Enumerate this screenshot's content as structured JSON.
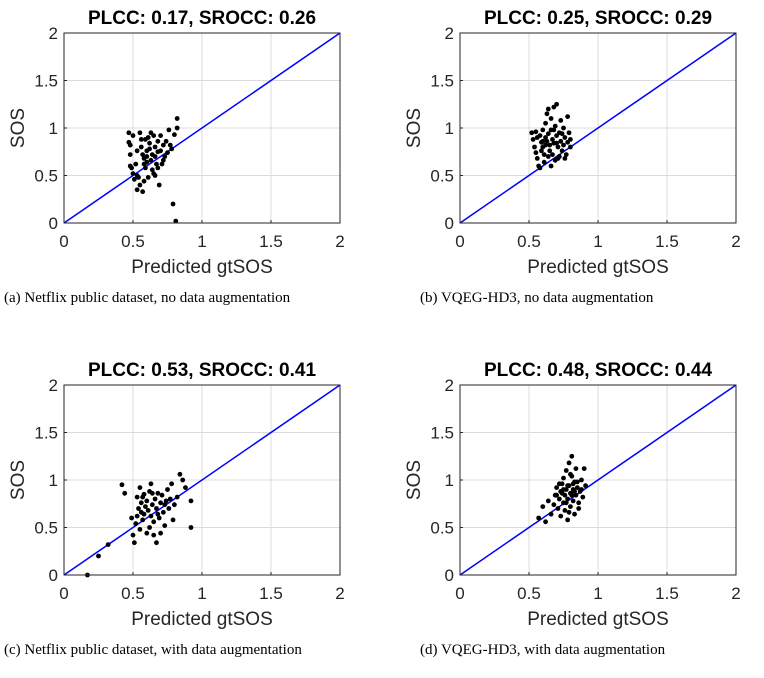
{
  "chart_data": [
    {
      "type": "scatter",
      "title": "PLCC: 0.17, SROCC: 0.26",
      "xlabel": "Predicted gtSOS",
      "ylabel": "SOS",
      "xlim": [
        0,
        2
      ],
      "ylim": [
        0,
        2
      ],
      "xticks": [
        "0",
        "0.5",
        "1",
        "1.5",
        "2"
      ],
      "yticks": [
        "0",
        "0.5",
        "1",
        "1.5",
        "2"
      ],
      "grid": true,
      "reference_line": {
        "x": [
          0,
          2
        ],
        "y": [
          0,
          2
        ],
        "color": "#0000ff"
      },
      "marker_color": "#000000",
      "caption": "(a) Netflix public dataset, no data augmentation",
      "points": [
        [
          0.47,
          0.95
        ],
        [
          0.47,
          0.85
        ],
        [
          0.48,
          0.82
        ],
        [
          0.48,
          0.72
        ],
        [
          0.48,
          0.6
        ],
        [
          0.49,
          0.58
        ],
        [
          0.5,
          0.52
        ],
        [
          0.51,
          0.46
        ],
        [
          0.52,
          0.62
        ],
        [
          0.53,
          0.5
        ],
        [
          0.54,
          0.48
        ],
        [
          0.55,
          0.4
        ],
        [
          0.55,
          0.95
        ],
        [
          0.56,
          0.88
        ],
        [
          0.56,
          0.8
        ],
        [
          0.57,
          0.72
        ],
        [
          0.58,
          0.68
        ],
        [
          0.58,
          0.62
        ],
        [
          0.59,
          0.58
        ],
        [
          0.6,
          0.76
        ],
        [
          0.6,
          0.7
        ],
        [
          0.61,
          0.9
        ],
        [
          0.62,
          0.84
        ],
        [
          0.62,
          0.78
        ],
        [
          0.63,
          0.66
        ],
        [
          0.64,
          0.72
        ],
        [
          0.64,
          0.56
        ],
        [
          0.65,
          0.92
        ],
        [
          0.66,
          0.8
        ],
        [
          0.66,
          0.7
        ],
        [
          0.67,
          0.62
        ],
        [
          0.68,
          0.75
        ],
        [
          0.68,
          0.86
        ],
        [
          0.69,
          0.4
        ],
        [
          0.7,
          0.76
        ],
        [
          0.71,
          0.62
        ],
        [
          0.72,
          0.82
        ],
        [
          0.73,
          0.7
        ],
        [
          0.74,
          0.86
        ],
        [
          0.75,
          0.74
        ],
        [
          0.76,
          0.98
        ],
        [
          0.78,
          0.78
        ],
        [
          0.79,
          0.2
        ],
        [
          0.8,
          0.93
        ],
        [
          0.81,
          0.02
        ],
        [
          0.82,
          1.1
        ],
        [
          0.82,
          1.0
        ],
        [
          0.53,
          0.35
        ],
        [
          0.57,
          0.33
        ],
        [
          0.61,
          0.48
        ],
        [
          0.66,
          0.5
        ],
        [
          0.7,
          0.92
        ],
        [
          0.63,
          0.95
        ],
        [
          0.59,
          0.88
        ],
        [
          0.53,
          0.76
        ],
        [
          0.77,
          0.82
        ],
        [
          0.68,
          0.58
        ],
        [
          0.5,
          0.92
        ],
        [
          0.58,
          0.44
        ],
        [
          0.65,
          0.52
        ],
        [
          0.72,
          0.66
        ],
        [
          0.6,
          0.64
        ]
      ]
    },
    {
      "type": "scatter",
      "title": "PLCC: 0.25, SROCC: 0.29",
      "xlabel": "Predicted gtSOS",
      "ylabel": "SOS",
      "xlim": [
        0,
        2
      ],
      "ylim": [
        0,
        2
      ],
      "xticks": [
        "0",
        "0.5",
        "1",
        "1.5",
        "2"
      ],
      "yticks": [
        "0",
        "0.5",
        "1",
        "1.5",
        "2"
      ],
      "grid": true,
      "reference_line": {
        "x": [
          0,
          2
        ],
        "y": [
          0,
          2
        ],
        "color": "#0000ff"
      },
      "marker_color": "#000000",
      "caption": "(b) VQEG-HD3, no data augmentation",
      "points": [
        [
          0.52,
          0.95
        ],
        [
          0.53,
          0.88
        ],
        [
          0.54,
          0.8
        ],
        [
          0.55,
          0.74
        ],
        [
          0.56,
          0.68
        ],
        [
          0.57,
          0.6
        ],
        [
          0.58,
          0.58
        ],
        [
          0.58,
          0.92
        ],
        [
          0.59,
          0.85
        ],
        [
          0.6,
          0.98
        ],
        [
          0.6,
          0.8
        ],
        [
          0.61,
          0.72
        ],
        [
          0.61,
          0.64
        ],
        [
          0.62,
          1.05
        ],
        [
          0.62,
          0.9
        ],
        [
          0.63,
          0.86
        ],
        [
          0.63,
          1.15
        ],
        [
          0.64,
          1.2
        ],
        [
          0.64,
          0.94
        ],
        [
          0.65,
          0.82
        ],
        [
          0.65,
          0.76
        ],
        [
          0.66,
          1.1
        ],
        [
          0.66,
          0.98
        ],
        [
          0.67,
          0.88
        ],
        [
          0.67,
          0.72
        ],
        [
          0.68,
          1.22
        ],
        [
          0.68,
          0.84
        ],
        [
          0.69,
          1.02
        ],
        [
          0.69,
          0.66
        ],
        [
          0.7,
          1.25
        ],
        [
          0.7,
          0.92
        ],
        [
          0.71,
          0.8
        ],
        [
          0.72,
          0.95
        ],
        [
          0.72,
          0.7
        ],
        [
          0.73,
          1.08
        ],
        [
          0.73,
          0.86
        ],
        [
          0.74,
          0.76
        ],
        [
          0.75,
          1.0
        ],
        [
          0.75,
          0.82
        ],
        [
          0.76,
          0.9
        ],
        [
          0.77,
          0.72
        ],
        [
          0.78,
          1.12
        ],
        [
          0.78,
          0.85
        ],
        [
          0.79,
          0.95
        ],
        [
          0.8,
          0.8
        ],
        [
          0.8,
          0.88
        ],
        [
          0.76,
          0.68
        ],
        [
          0.71,
          0.68
        ],
        [
          0.56,
          0.9
        ],
        [
          0.59,
          0.76
        ],
        [
          0.64,
          0.7
        ],
        [
          0.66,
          0.6
        ],
        [
          0.62,
          0.82
        ],
        [
          0.68,
          0.98
        ],
        [
          0.74,
          0.94
        ],
        [
          0.6,
          0.86
        ],
        [
          0.55,
          0.96
        ],
        [
          0.7,
          0.84
        ]
      ]
    },
    {
      "type": "scatter",
      "title": "PLCC: 0.53, SROCC: 0.41",
      "xlabel": "Predicted gtSOS",
      "ylabel": "SOS",
      "xlim": [
        0,
        2
      ],
      "ylim": [
        0,
        2
      ],
      "xticks": [
        "0",
        "0.5",
        "1",
        "1.5",
        "2"
      ],
      "yticks": [
        "0",
        "0.5",
        "1",
        "1.5",
        "2"
      ],
      "grid": true,
      "reference_line": {
        "x": [
          0,
          2
        ],
        "y": [
          0,
          2
        ],
        "color": "#0000ff"
      },
      "marker_color": "#000000",
      "caption": "(c) Netflix public dataset, with data augmentation",
      "points": [
        [
          0.17,
          0.0
        ],
        [
          0.25,
          0.2
        ],
        [
          0.32,
          0.32
        ],
        [
          0.42,
          0.95
        ],
        [
          0.44,
          0.86
        ],
        [
          0.49,
          0.6
        ],
        [
          0.5,
          0.42
        ],
        [
          0.51,
          0.34
        ],
        [
          0.52,
          0.54
        ],
        [
          0.53,
          0.62
        ],
        [
          0.53,
          0.82
        ],
        [
          0.54,
          0.7
        ],
        [
          0.55,
          0.48
        ],
        [
          0.56,
          0.66
        ],
        [
          0.56,
          0.76
        ],
        [
          0.57,
          0.58
        ],
        [
          0.58,
          0.64
        ],
        [
          0.58,
          0.85
        ],
        [
          0.59,
          0.72
        ],
        [
          0.6,
          0.44
        ],
        [
          0.6,
          0.78
        ],
        [
          0.61,
          0.68
        ],
        [
          0.62,
          0.88
        ],
        [
          0.63,
          0.62
        ],
        [
          0.63,
          0.96
        ],
        [
          0.64,
          0.74
        ],
        [
          0.65,
          0.56
        ],
        [
          0.65,
          0.42
        ],
        [
          0.66,
          0.8
        ],
        [
          0.67,
          0.7
        ],
        [
          0.67,
          0.34
        ],
        [
          0.68,
          0.86
        ],
        [
          0.69,
          0.6
        ],
        [
          0.7,
          0.76
        ],
        [
          0.71,
          0.84
        ],
        [
          0.72,
          0.66
        ],
        [
          0.73,
          0.52
        ],
        [
          0.74,
          0.78
        ],
        [
          0.75,
          0.9
        ],
        [
          0.76,
          0.7
        ],
        [
          0.77,
          0.8
        ],
        [
          0.78,
          0.96
        ],
        [
          0.8,
          0.74
        ],
        [
          0.82,
          0.82
        ],
        [
          0.84,
          1.06
        ],
        [
          0.86,
          1.0
        ],
        [
          0.88,
          0.92
        ],
        [
          0.92,
          0.5
        ],
        [
          0.92,
          0.78
        ],
        [
          0.79,
          0.58
        ],
        [
          0.7,
          0.44
        ],
        [
          0.57,
          0.82
        ],
        [
          0.62,
          0.5
        ],
        [
          0.55,
          0.92
        ],
        [
          0.68,
          0.64
        ],
        [
          0.73,
          0.74
        ],
        [
          0.64,
          0.86
        ]
      ]
    },
    {
      "type": "scatter",
      "title": "PLCC: 0.48, SROCC: 0.44",
      "xlabel": "Predicted gtSOS",
      "ylabel": "SOS",
      "xlim": [
        0,
        2
      ],
      "ylim": [
        0,
        2
      ],
      "xticks": [
        "0",
        "0.5",
        "1",
        "1.5",
        "2"
      ],
      "yticks": [
        "0",
        "0.5",
        "1",
        "1.5",
        "2"
      ],
      "grid": true,
      "reference_line": {
        "x": [
          0,
          2
        ],
        "y": [
          0,
          2
        ],
        "color": "#0000ff"
      },
      "marker_color": "#000000",
      "caption": "(d) VQEG-HD3, with data augmentation",
      "points": [
        [
          0.57,
          0.6
        ],
        [
          0.6,
          0.72
        ],
        [
          0.62,
          0.56
        ],
        [
          0.64,
          0.78
        ],
        [
          0.66,
          0.64
        ],
        [
          0.68,
          0.74
        ],
        [
          0.69,
          0.84
        ],
        [
          0.7,
          0.92
        ],
        [
          0.71,
          0.7
        ],
        [
          0.72,
          0.8
        ],
        [
          0.73,
          0.88
        ],
        [
          0.73,
          0.62
        ],
        [
          0.74,
          0.96
        ],
        [
          0.75,
          0.76
        ],
        [
          0.75,
          1.02
        ],
        [
          0.76,
          0.84
        ],
        [
          0.76,
          0.68
        ],
        [
          0.77,
          0.9
        ],
        [
          0.77,
          1.1
        ],
        [
          0.78,
          0.8
        ],
        [
          0.78,
          0.58
        ],
        [
          0.79,
          0.94
        ],
        [
          0.79,
          1.18
        ],
        [
          0.8,
          0.86
        ],
        [
          0.8,
          0.72
        ],
        [
          0.81,
          1.04
        ],
        [
          0.81,
          1.25
        ],
        [
          0.82,
          0.9
        ],
        [
          0.82,
          0.78
        ],
        [
          0.83,
          0.98
        ],
        [
          0.83,
          0.64
        ],
        [
          0.84,
          0.84
        ],
        [
          0.84,
          1.12
        ],
        [
          0.85,
          0.92
        ],
        [
          0.86,
          0.76
        ],
        [
          0.87,
          0.88
        ],
        [
          0.88,
          1.0
        ],
        [
          0.89,
          0.82
        ],
        [
          0.9,
          1.12
        ],
        [
          0.91,
          0.94
        ],
        [
          0.86,
          0.7
        ],
        [
          0.79,
          0.66
        ],
        [
          0.74,
          0.86
        ],
        [
          0.81,
          0.84
        ],
        [
          0.77,
          0.76
        ],
        [
          0.83,
          0.88
        ],
        [
          0.85,
          0.98
        ],
        [
          0.78,
          0.94
        ],
        [
          0.72,
          0.96
        ],
        [
          0.8,
          1.06
        ],
        [
          0.75,
          0.9
        ],
        [
          0.82,
          0.96
        ],
        [
          0.88,
          0.9
        ],
        [
          0.7,
          0.84
        ]
      ]
    }
  ]
}
